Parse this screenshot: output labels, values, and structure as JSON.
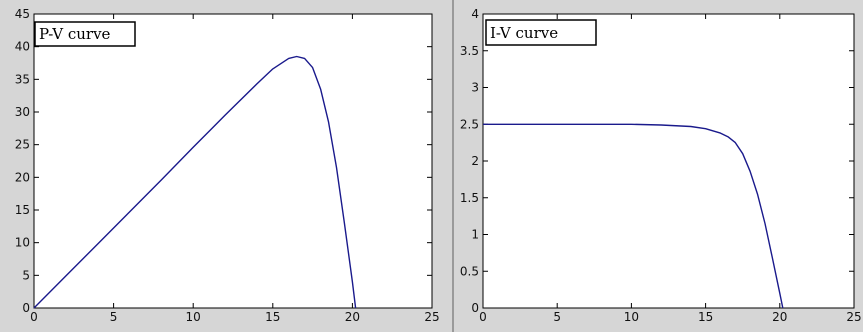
{
  "chart_data": [
    {
      "type": "line",
      "legend_text": "P-V curve",
      "legend_placement": "top-left",
      "xlim": [
        0,
        25
      ],
      "ylim": [
        0,
        45
      ],
      "xticks": [
        "0",
        "5",
        "10",
        "15",
        "20",
        "25"
      ],
      "yticks": [
        "0",
        "5",
        "10",
        "15",
        "20",
        "25",
        "30",
        "35",
        "40",
        "45"
      ],
      "grid": false,
      "line_color": "#1a1a8c",
      "series": [
        {
          "x": [
            0,
            2,
            4,
            6,
            8,
            10,
            12,
            14,
            15,
            16,
            16.5,
            17,
            17.5,
            18,
            18.5,
            19,
            19.5,
            20,
            20.2
          ],
          "y": [
            0,
            4.9,
            9.8,
            14.7,
            19.6,
            24.6,
            29.5,
            34.3,
            36.6,
            38.2,
            38.5,
            38.2,
            36.8,
            33.5,
            28.5,
            21.5,
            13,
            4,
            0
          ]
        }
      ]
    },
    {
      "type": "line",
      "legend_text": "I-V curve",
      "legend_placement": "top-left",
      "xlim": [
        0,
        25
      ],
      "ylim": [
        0,
        4
      ],
      "xticks": [
        "0",
        "5",
        "10",
        "15",
        "20",
        "25"
      ],
      "yticks": [
        "0",
        "0.5",
        "1",
        "1.5",
        "2",
        "2.5",
        "3",
        "3.5",
        "4"
      ],
      "grid": false,
      "line_color": "#1a1a8c",
      "series": [
        {
          "x": [
            0,
            5,
            10,
            12,
            14,
            15,
            16,
            16.5,
            17,
            17.5,
            18,
            18.5,
            19,
            19.5,
            20,
            20.2
          ],
          "y": [
            2.5,
            2.5,
            2.5,
            2.49,
            2.47,
            2.44,
            2.38,
            2.33,
            2.25,
            2.1,
            1.86,
            1.55,
            1.15,
            0.68,
            0.2,
            0
          ]
        }
      ]
    }
  ]
}
